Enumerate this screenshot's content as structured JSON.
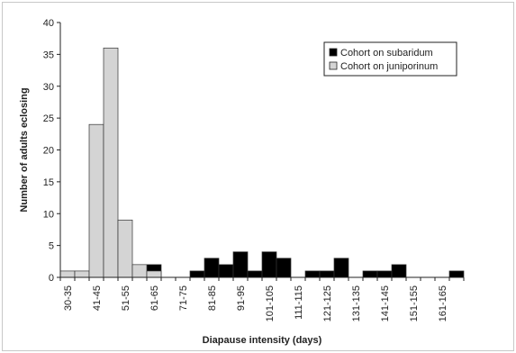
{
  "chart_data": {
    "type": "bar",
    "xlabel": "Diapause intensity (days)",
    "ylabel": "Number of adults eclosing",
    "ylim": [
      0,
      40
    ],
    "yticks": [
      0,
      5,
      10,
      15,
      20,
      25,
      30,
      35,
      40
    ],
    "bins": [
      "30-35",
      "36-40",
      "41-45",
      "46-50",
      "51-55",
      "56-60",
      "61-65",
      "66-70",
      "71-75",
      "76-80",
      "81-85",
      "86-90",
      "91-95",
      "96-100",
      "101-105",
      "106-110",
      "111-115",
      "116-120",
      "121-125",
      "126-130",
      "131-135",
      "136-140",
      "141-145",
      "146-150",
      "151-155",
      "156-160",
      "161-165",
      "166-170"
    ],
    "tick_labels": [
      "30-35",
      "41-45",
      "51-55",
      "61-65",
      "71-75",
      "81-85",
      "91-95",
      "101-105",
      "111-115",
      "121-125",
      "131-135",
      "141-145",
      "151-155",
      "161-165"
    ],
    "legend_position": "top-right",
    "series": [
      {
        "name": "Cohort on subaridum",
        "color": "#000000",
        "values": [
          0,
          0,
          0,
          0,
          0,
          0,
          2,
          0,
          0,
          1,
          3,
          2,
          4,
          1,
          4,
          3,
          0,
          1,
          1,
          3,
          0,
          1,
          1,
          2,
          0,
          0,
          0,
          1
        ]
      },
      {
        "name": "Cohort on juniporinum",
        "color": "#d4d4d4",
        "values": [
          1,
          1,
          24,
          36,
          9,
          2,
          1,
          0,
          0,
          0,
          0,
          0,
          0,
          0,
          0,
          0,
          0,
          0,
          0,
          0,
          0,
          0,
          0,
          0,
          0,
          0,
          0,
          0
        ]
      }
    ]
  }
}
